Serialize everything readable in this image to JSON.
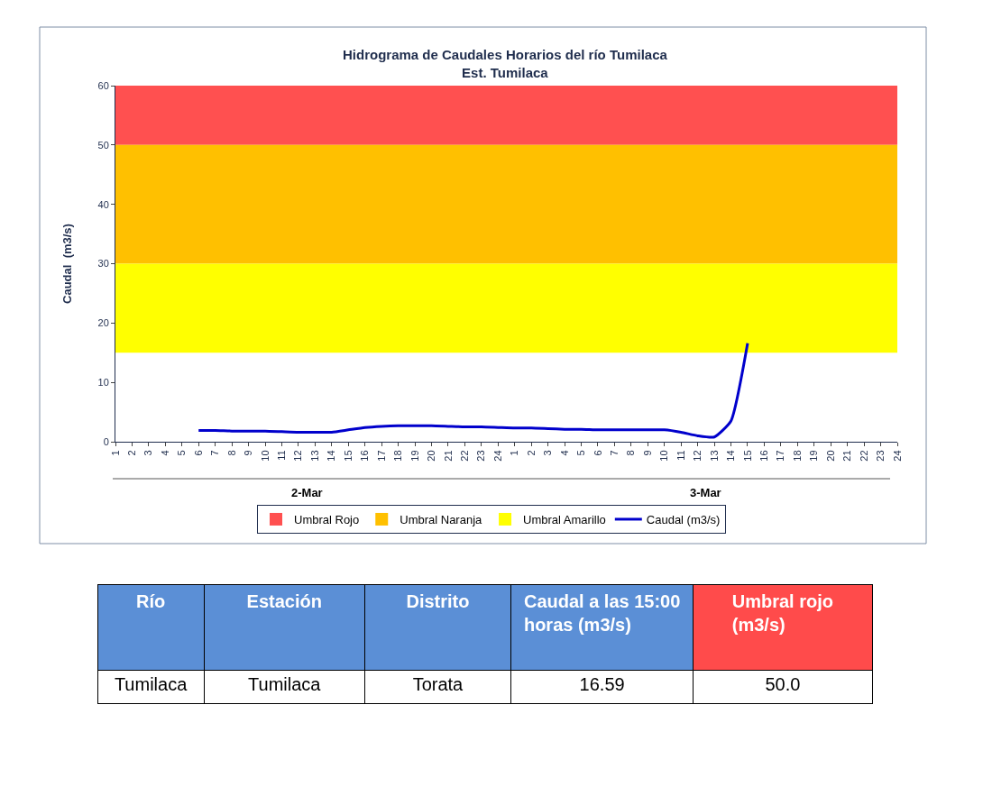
{
  "chart_data": [
    {
      "type": "line",
      "title": "Hidrograma de Caudales Horarios del río Tumilaca",
      "subtitle": "Est. Tumilaca",
      "ylabel": "Caudal  (m3/s)",
      "categories": [
        "1",
        "2",
        "3",
        "4",
        "5",
        "6",
        "7",
        "8",
        "9",
        "10",
        "11",
        "12",
        "13",
        "14",
        "15",
        "16",
        "17",
        "18",
        "19",
        "20",
        "21",
        "22",
        "23",
        "24",
        "1",
        "2",
        "3",
        "4",
        "5",
        "6",
        "7",
        "8",
        "9",
        "10",
        "11",
        "12",
        "13",
        "14",
        "15",
        "16",
        "17",
        "18",
        "19",
        "20",
        "21",
        "22",
        "23",
        "24"
      ],
      "annotations": [
        "2-Mar",
        "3-Mar"
      ],
      "series": [
        {
          "name": "Caudal (m3/s)",
          "color": "#0000cc",
          "values": [
            null,
            null,
            null,
            null,
            null,
            1.9,
            1.9,
            1.8,
            1.8,
            1.8,
            1.7,
            1.6,
            1.6,
            1.6,
            2.0,
            2.4,
            2.6,
            2.7,
            2.7,
            2.7,
            2.6,
            2.5,
            2.5,
            2.4,
            2.3,
            2.3,
            2.2,
            2.1,
            2.1,
            2.0,
            2.0,
            2.0,
            2.0,
            2.0,
            1.6,
            1.0,
            0.8,
            3.5,
            16.59,
            null,
            null,
            null,
            null,
            null,
            null,
            null,
            null,
            null
          ]
        }
      ],
      "bands": [
        {
          "axis": "y",
          "from": 50,
          "to": 60,
          "label": "Umbral Rojo",
          "color": "#ff5050"
        },
        {
          "axis": "y",
          "from": 30,
          "to": 50,
          "label": "Umbral Naranja",
          "color": "#ffc000"
        },
        {
          "axis": "y",
          "from": 15,
          "to": 30,
          "label": "Umbral Amarillo",
          "color": "#ffff00"
        }
      ],
      "ylim": [
        0,
        60
      ],
      "yticks": [
        0,
        10,
        20,
        30,
        40,
        50,
        60
      ],
      "grid": false,
      "legend": "bottom",
      "marker": "none",
      "line_style": "solid"
    },
    {
      "type": "other",
      "colors": [
        "#5b8fd6",
        "#5b8fd6",
        "#5b8fd6",
        "#5b8fd6",
        "#ff4b4b"
      ],
      "annotations": [
        "Río",
        "Estación",
        "Distrito",
        "Caudal a las 15:00 horas (m3/s)",
        "Umbral rojo (m3/s)",
        "Tumilaca",
        "Tumilaca",
        "Torata",
        "16.59",
        "50.0"
      ]
    }
  ]
}
